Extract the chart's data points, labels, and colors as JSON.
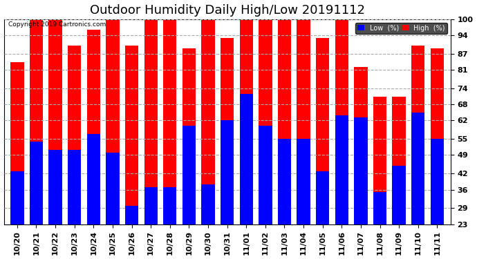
{
  "title": "Outdoor Humidity Daily High/Low 20191112",
  "copyright": "Copyright 2019 Cartronics.com",
  "categories": [
    "10/20",
    "10/21",
    "10/22",
    "10/23",
    "10/24",
    "10/25",
    "10/26",
    "10/27",
    "10/28",
    "10/29",
    "10/30",
    "10/31",
    "11/01",
    "11/02",
    "11/03",
    "11/04",
    "11/05",
    "11/06",
    "11/07",
    "11/08",
    "11/09",
    "11/10",
    "11/11"
  ],
  "high_values": [
    84,
    100,
    100,
    90,
    96,
    100,
    90,
    100,
    100,
    89,
    100,
    93,
    100,
    100,
    100,
    100,
    93,
    100,
    82,
    71,
    71,
    90,
    89
  ],
  "low_values": [
    43,
    54,
    51,
    51,
    57,
    50,
    30,
    37,
    37,
    60,
    38,
    62,
    72,
    60,
    55,
    55,
    43,
    64,
    63,
    35,
    45,
    65,
    55
  ],
  "high_color": "#ff0000",
  "low_color": "#0000ff",
  "bg_color": "#ffffff",
  "plot_bg_color": "#ffffff",
  "grid_color": "#aaaaaa",
  "yticks": [
    23,
    29,
    36,
    42,
    49,
    55,
    62,
    68,
    74,
    81,
    87,
    94,
    100
  ],
  "ymin": 23,
  "ymax": 100,
  "bar_width": 0.7,
  "title_fontsize": 13,
  "tick_fontsize": 8
}
